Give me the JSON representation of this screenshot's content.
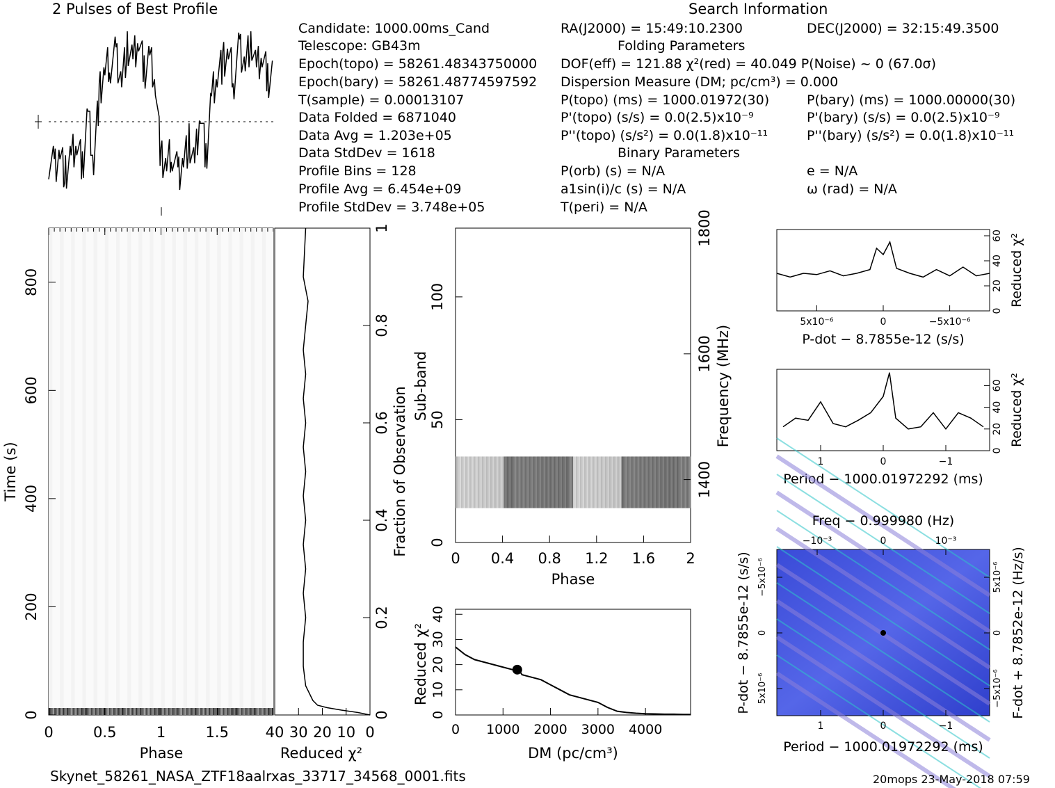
{
  "profile_title": "2 Pulses of Best Profile",
  "search_title": "Search Information",
  "candidate_info": [
    "Candidate:  1000.00ms_Cand",
    "Telescope:  GB43m",
    "Epoch(topo) = 58261.48343750000",
    "Epoch(bary) = 58261.48774597592",
    "T(sample)        =  0.00013107",
    "Data Folded      =  6871040",
    "Data Avg         =  1.203e+05",
    "Data StdDev      =  1618",
    "Profile Bins     =  128",
    "Profile Avg      =  6.454e+09",
    "Profile StdDev   =  3.748e+05"
  ],
  "search_info": {
    "ra": "RA(J2000) = 15:49:10.2300",
    "dec": "DEC(J2000) = 32:15:49.3500",
    "folding_header": "Folding Parameters",
    "dof": "DOF(eff) = 121.88  χ²(red) = 40.049  P(Noise) ~ 0   (67.0σ)",
    "dm": "Dispersion Measure (DM; pc/cm³) = 0.000",
    "ptopo": "P(topo) (ms) =  1000.01972(30)",
    "pbary": "P(bary) (ms) =  1000.00000(30)",
    "pdtopo": "P'(topo) (s/s) = 0.0(2.5)x10⁻⁹",
    "pdbary": "P'(bary) (s/s) = 0.0(2.5)x10⁻⁹",
    "pddtopo": "P''(topo) (s/s²) = 0.0(1.8)x10⁻¹¹",
    "pddbary": "P''(bary) (s/s²) = 0.0(1.8)x10⁻¹¹",
    "binary_header": "Binary Parameters",
    "porb": "P(orb) (s) = N/A",
    "ecc": "e = N/A",
    "a1": "a1sin(i)/c (s) = N/A",
    "omega": "ω (rad) = N/A",
    "tperi": "T(peri) = N/A"
  },
  "footer": {
    "filename": "Skynet_58261_NASA_ZTF18aalrxas_33717_34568_0001.fits",
    "stamp": "20mops 23-May-2018 07:59"
  },
  "chart_data": [
    {
      "id": "profile",
      "type": "line",
      "title": "2 Pulses of Best Profile",
      "x": [
        0,
        0.05,
        0.1,
        0.15,
        0.2,
        0.25,
        0.3,
        0.35,
        0.4,
        0.45,
        0.5,
        0.55,
        0.6,
        0.65,
        0.7,
        0.75,
        0.8,
        0.85,
        0.9,
        0.95,
        1.0,
        1.05,
        1.1,
        1.15,
        1.2,
        1.25,
        1.3,
        1.35,
        1.4,
        1.45,
        1.5,
        1.55,
        1.6,
        1.65,
        1.7,
        1.75,
        1.8,
        1.85,
        1.9,
        1.95,
        2.0
      ],
      "y": [
        0.2,
        0.15,
        0.25,
        0.1,
        0.2,
        0.3,
        0.15,
        0.5,
        0.2,
        0.6,
        0.75,
        0.8,
        0.85,
        0.7,
        0.9,
        0.8,
        0.95,
        0.75,
        0.85,
        0.7,
        0.2,
        0.15,
        0.25,
        0.1,
        0.2,
        0.3,
        0.15,
        0.5,
        0.2,
        0.6,
        0.75,
        0.8,
        0.85,
        0.7,
        0.9,
        0.8,
        0.95,
        0.75,
        0.85,
        0.7,
        0.75
      ],
      "mean_level": 0.5
    },
    {
      "id": "time_phase",
      "type": "heatmap",
      "xlabel": "Phase",
      "ylabel": "Time (s)",
      "xlim": [
        0,
        2
      ],
      "ylim": [
        0,
        900
      ],
      "xticks": [
        "0",
        "0.5",
        "1",
        "1.5"
      ],
      "yticks": [
        "0",
        "200",
        "400",
        "600",
        "800"
      ]
    },
    {
      "id": "time_chi2",
      "type": "line",
      "xlabel": "Reduced χ²",
      "ylabel": "Fraction of Observation",
      "xlim": [
        40,
        0
      ],
      "ylim": [
        0,
        1
      ],
      "xticks": [
        "40",
        "30",
        "20",
        "10",
        "0"
      ],
      "yticks": [
        "0",
        "0.2",
        "0.4",
        "0.6",
        "0.8",
        "1"
      ],
      "x": [
        0,
        5,
        12,
        18,
        22,
        24,
        27,
        28,
        28,
        27,
        28,
        27,
        28,
        27,
        28,
        27,
        28,
        27,
        28,
        27,
        28,
        27,
        26,
        28,
        27
      ],
      "y": [
        0.0,
        0.005,
        0.01,
        0.015,
        0.02,
        0.03,
        0.06,
        0.1,
        0.15,
        0.2,
        0.25,
        0.3,
        0.35,
        0.4,
        0.45,
        0.5,
        0.55,
        0.6,
        0.65,
        0.7,
        0.75,
        0.8,
        0.85,
        0.9,
        1.0
      ]
    },
    {
      "id": "subband_phase",
      "type": "heatmap",
      "xlabel": "Phase",
      "ylabel": "Sub-band",
      "y2label": "Frequency (MHz)",
      "xlim": [
        0,
        2
      ],
      "ylim": [
        0,
        128
      ],
      "y2lim": [
        1300,
        1800
      ],
      "xticks": [
        "0",
        "0.4",
        "0.8",
        "1.2",
        "1.6",
        "2"
      ],
      "yticks": [
        "0",
        "50",
        "100"
      ],
      "y2ticks": [
        "1400",
        "1600",
        "1800"
      ],
      "band_range": [
        14,
        35
      ]
    },
    {
      "id": "dm_chi2",
      "type": "line",
      "xlabel": "DM (pc/cm³)",
      "ylabel": "Reduced χ²",
      "xlim": [
        0,
        4950
      ],
      "ylim": [
        0,
        42
      ],
      "xticks": [
        "0",
        "1000",
        "2000",
        "3000",
        "4000"
      ],
      "yticks": [
        "0",
        "10",
        "20",
        "30",
        "40"
      ],
      "x": [
        0,
        200,
        400,
        600,
        800,
        1000,
        1200,
        1300,
        1400,
        1600,
        1800,
        2000,
        2200,
        2400,
        2600,
        2800,
        3000,
        3200,
        3400,
        3600,
        3800,
        4000,
        4200,
        4400,
        4600,
        4800,
        4950
      ],
      "y": [
        27,
        24,
        22,
        21,
        20,
        19,
        18,
        19,
        16,
        15,
        14,
        12,
        10,
        8,
        7,
        6,
        5,
        3,
        1.5,
        1,
        0.7,
        0.5,
        0.4,
        0.3,
        0.3,
        0.2,
        0.2
      ]
    },
    {
      "id": "pdot_chi2",
      "type": "line",
      "xlabel": "P-dot − 8.7855e-12 (s/s)",
      "ylabel": "Reduced χ²",
      "xticks": [
        "5x10⁻⁶",
        "0",
        "−5x10⁻⁶"
      ],
      "yticks": [
        "0",
        "20",
        "40",
        "60"
      ],
      "ylim": [
        0,
        65
      ],
      "x": [
        -8,
        -7,
        -6,
        -5,
        -4,
        -3,
        -2,
        -1,
        -0.5,
        0,
        0.5,
        1,
        2,
        3,
        4,
        5,
        6,
        7,
        8
      ],
      "y": [
        30,
        28,
        35,
        28,
        33,
        27,
        30,
        34,
        55,
        45,
        50,
        33,
        30,
        28,
        32,
        29,
        30,
        27,
        30
      ]
    },
    {
      "id": "period_chi2",
      "type": "line",
      "xlabel": "Period − 1000.01972292 (ms)",
      "ylabel": "Reduced χ²",
      "xticks": [
        "1",
        "0",
        "−1"
      ],
      "yticks": [
        "0",
        "20",
        "40",
        "60"
      ],
      "ylim": [
        0,
        75
      ],
      "x": [
        1.6,
        1.4,
        1.2,
        1.0,
        0.8,
        0.6,
        0.4,
        0.2,
        0.0,
        -0.1,
        -0.2,
        -0.4,
        -0.6,
        -0.8,
        -1.0,
        -1.2,
        -1.4,
        -1.6
      ],
      "y": [
        22,
        30,
        28,
        45,
        25,
        22,
        28,
        35,
        50,
        72,
        30,
        20,
        22,
        35,
        20,
        35,
        30,
        22
      ]
    },
    {
      "id": "period_pdot",
      "type": "heatmap",
      "xlabel": "Period − 1000.01972292 (ms)",
      "ylabel": "P-dot − 8.7855e-12 (s/s)",
      "x2label": "Freq − 0.999980 (Hz)",
      "y2label": "F-dot + 8.7852e-12 (Hz/s)",
      "xticks": [
        "1",
        "0",
        "−1"
      ],
      "x2ticks": [
        "−10⁻³",
        "0",
        "10⁻³"
      ],
      "yticks": [
        "5x10⁻⁶",
        "0",
        "−5x10⁻⁶"
      ],
      "y2ticks": [
        "−5x10⁻⁶",
        "0",
        "5x10⁻⁶"
      ]
    }
  ]
}
